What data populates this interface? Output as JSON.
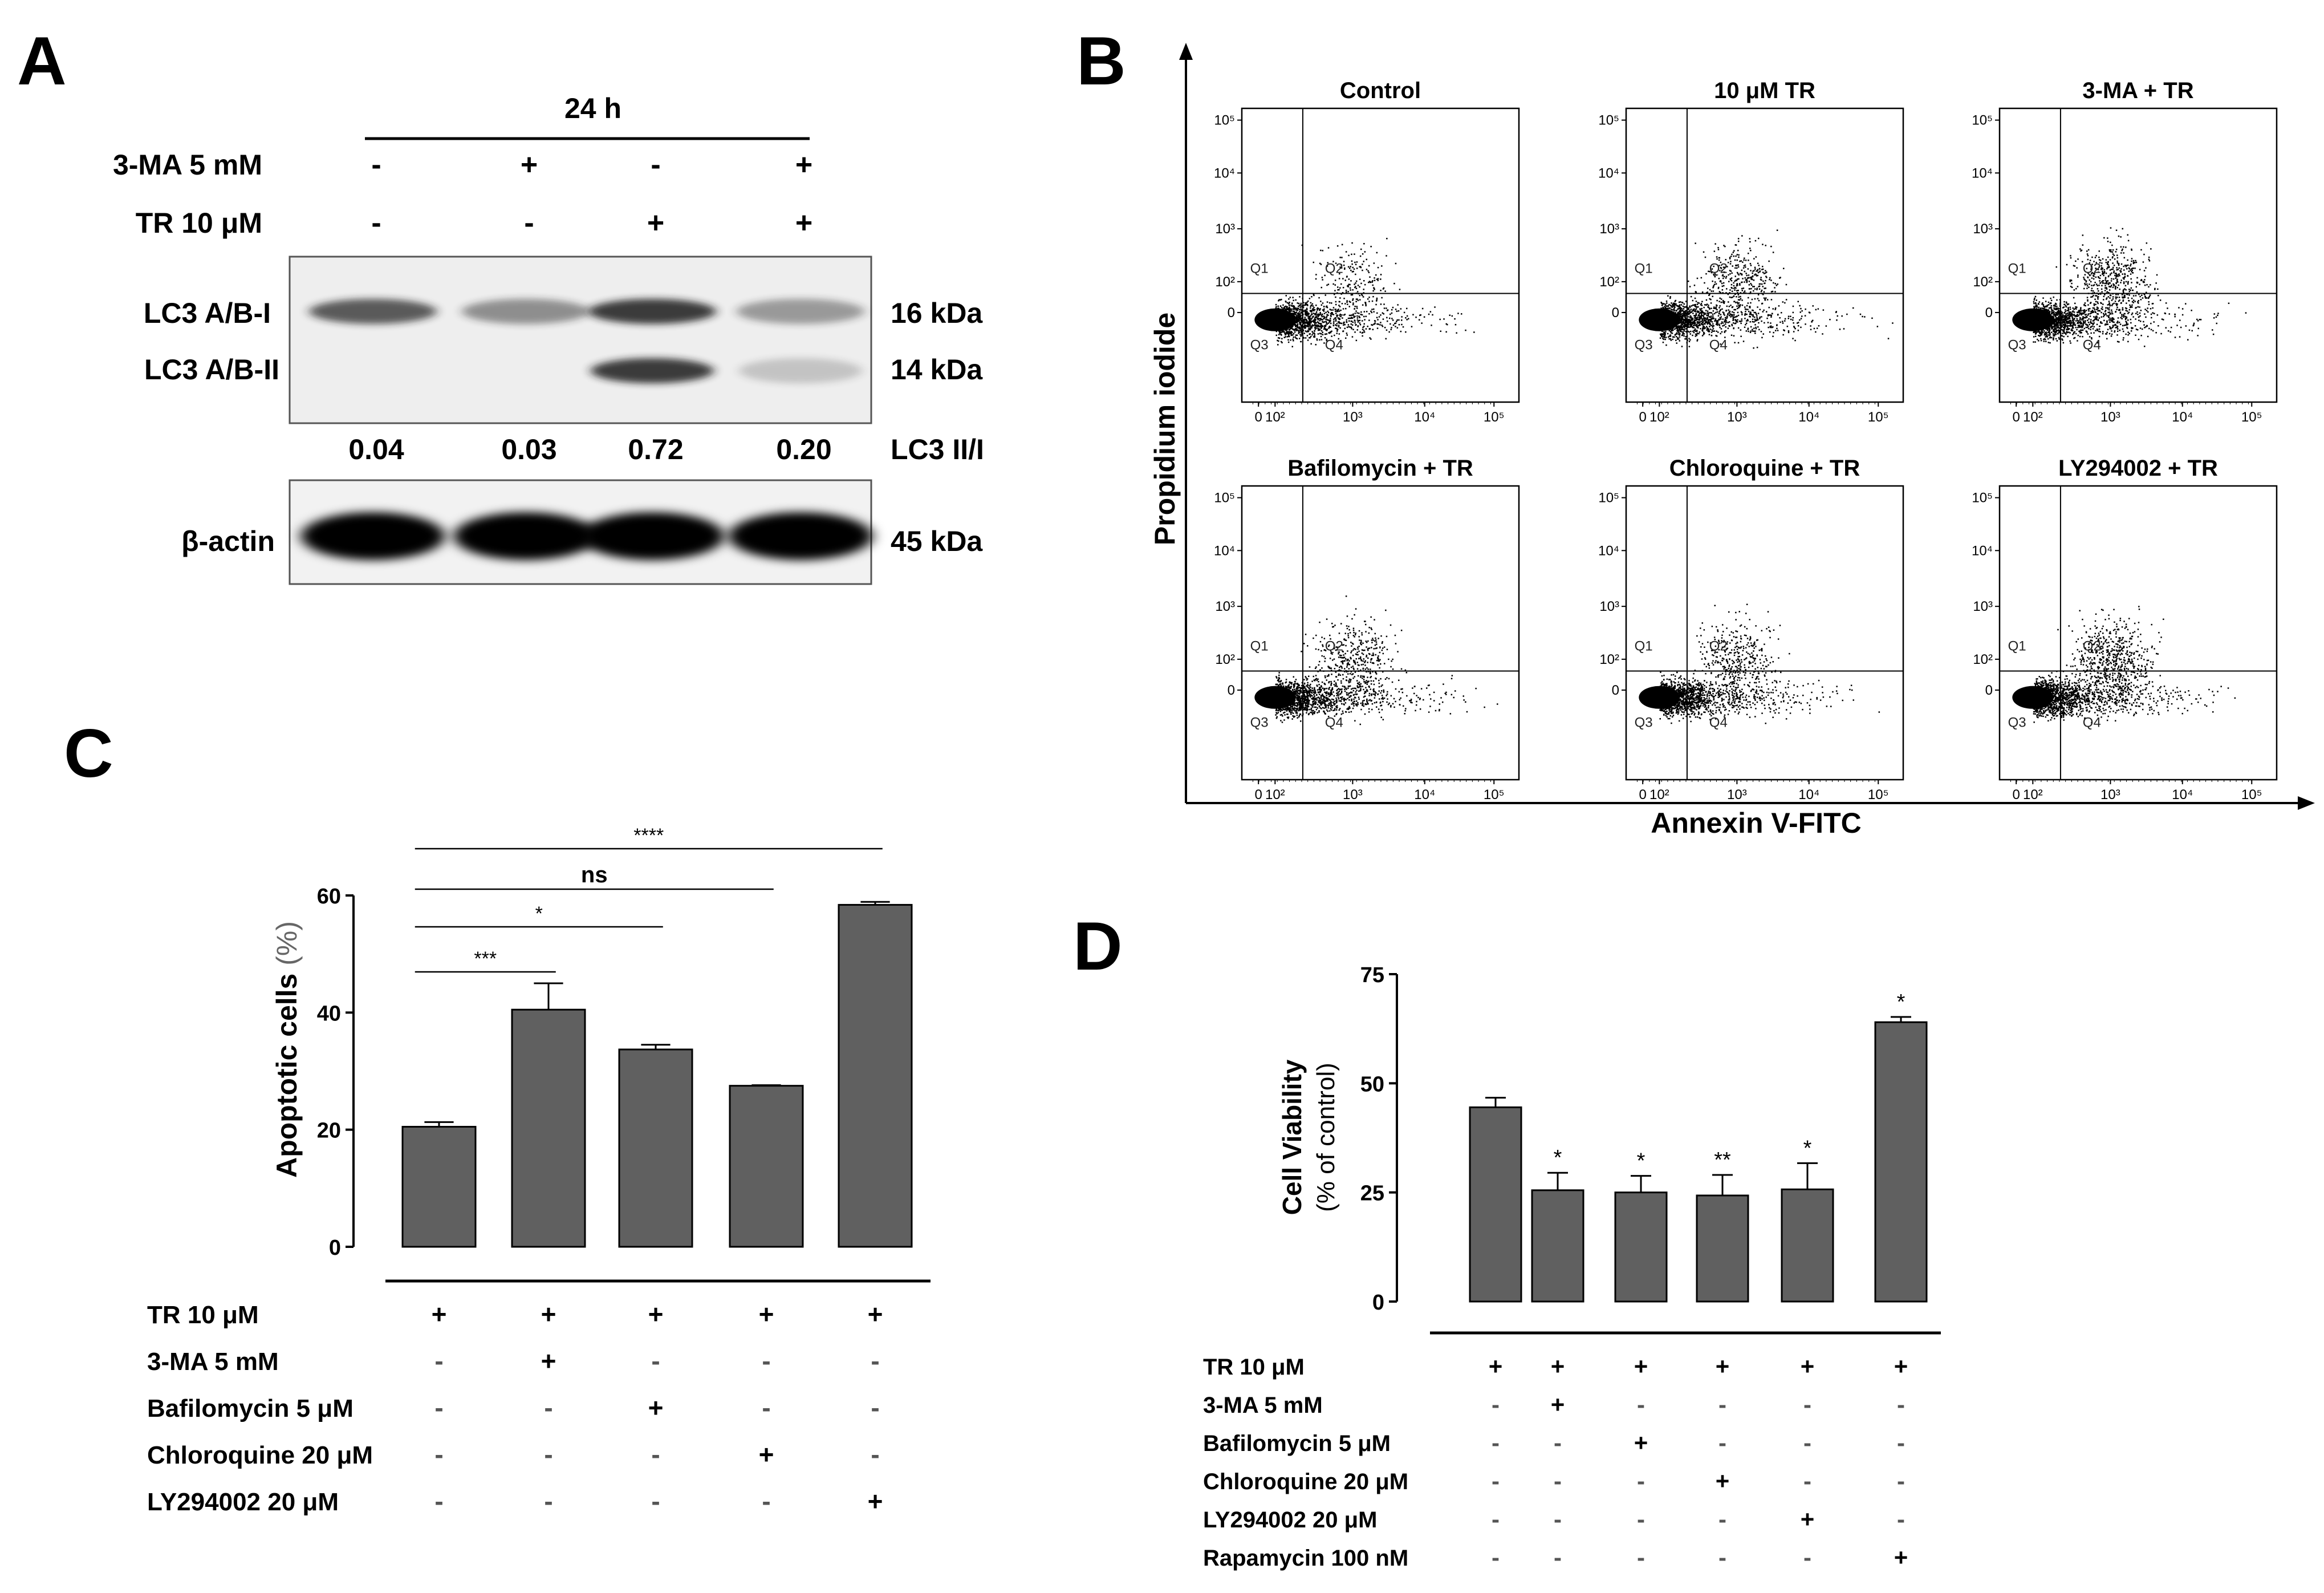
{
  "figure": {
    "panel_labels": {
      "A": "A",
      "B": "B",
      "C": "C",
      "D": "D"
    },
    "colors": {
      "bar": "#606060",
      "ink": "#000000",
      "band": "#1a1a1a",
      "blot_bg": "#efefef"
    }
  },
  "panel_a": {
    "timepoint": "24 h",
    "conditions": [
      {
        "label": "3-MA 5 mM",
        "signs": [
          "-",
          "+",
          "-",
          "+"
        ]
      },
      {
        "label": "TR 10 μM",
        "signs": [
          "-",
          "-",
          "+",
          "+"
        ]
      }
    ],
    "bands": {
      "lc3_i": {
        "label": "LC3 A/B-I",
        "size": "16 kDa",
        "intensity": [
          0.7,
          0.45,
          0.85,
          0.4
        ]
      },
      "lc3_ii": {
        "label": "LC3 A/B-II",
        "size": "14 kDa",
        "intensity": [
          0.0,
          0.0,
          0.85,
          0.2
        ]
      },
      "actin": {
        "label": "β-actin",
        "size": "45 kDa",
        "intensity": [
          1,
          1,
          1,
          1
        ]
      }
    },
    "ratio_label": "LC3 II/I",
    "ratios": [
      "0.04",
      "0.03",
      "0.72",
      "0.20"
    ]
  },
  "panel_b": {
    "y_axis_label": "Propidium iodide",
    "x_axis_label": "Annexin V-FITC",
    "y_ticks": [
      "10⁵",
      "10⁴",
      "10³",
      "10²",
      "0"
    ],
    "x_ticks": [
      "0",
      "10²",
      "10³",
      "10⁴",
      "10⁵"
    ],
    "quadrants": [
      "Q1",
      "Q2",
      "Q3",
      "Q4"
    ],
    "plots": [
      {
        "title": "Control",
        "q2_density": 0.12
      },
      {
        "title": "10 μM TR",
        "q2_density": 0.35
      },
      {
        "title": "3-MA + TR",
        "q2_density": 0.5
      },
      {
        "title": "Bafilomycin + TR",
        "q2_density": 0.4
      },
      {
        "title": "Chloroquine + TR",
        "q2_density": 0.33
      },
      {
        "title": "LY294002 + TR",
        "q2_density": 0.6
      }
    ]
  },
  "chart_data": [
    {
      "type": "bar",
      "panel": "C",
      "ylabel": "Apoptotic cells",
      "ylabel_unit": "(%)",
      "ylim": [
        0,
        60
      ],
      "yticks": [
        0,
        20,
        40,
        60
      ],
      "values": [
        20.5,
        40.5,
        33.7,
        27.5,
        58.4
      ],
      "errors": [
        0.8,
        4.5,
        0.8,
        0.1,
        0.5
      ],
      "significance": [
        {
          "label": "***",
          "from": 0,
          "to": 1
        },
        {
          "label": "*",
          "from": 0,
          "to": 2
        },
        {
          "label": "ns",
          "from": 0,
          "to": 3
        },
        {
          "label": "****",
          "from": 0,
          "to": 4
        }
      ],
      "treatment_rows": [
        {
          "label": "TR 10 μM",
          "signs": [
            "+",
            "+",
            "+",
            "+",
            "+"
          ]
        },
        {
          "label": "3-MA 5 mM",
          "signs": [
            "-",
            "+",
            "-",
            "-",
            "-"
          ]
        },
        {
          "label": "Bafilomycin 5 μM",
          "signs": [
            "-",
            "-",
            "+",
            "-",
            "-"
          ]
        },
        {
          "label": "Chloroquine 20 μM",
          "signs": [
            "-",
            "-",
            "-",
            "+",
            "-"
          ]
        },
        {
          "label": "LY294002 20 μM",
          "signs": [
            "-",
            "-",
            "-",
            "-",
            "+"
          ]
        }
      ]
    },
    {
      "type": "bar",
      "panel": "D",
      "ylabel": "Cell Viability",
      "ylabel_unit": "(% of control)",
      "ylim": [
        0,
        75
      ],
      "yticks": [
        0,
        25,
        50,
        75
      ],
      "values": [
        44.5,
        25.5,
        25,
        24.3,
        25.7,
        64
      ],
      "errors": [
        2.2,
        4,
        3.8,
        4.7,
        6,
        1.2
      ],
      "stars": [
        "",
        "*",
        "*",
        "**",
        "*",
        "*"
      ],
      "treatment_rows": [
        {
          "label": "TR 10 μM",
          "signs": [
            "+",
            "+",
            "+",
            "+",
            "+",
            "+"
          ]
        },
        {
          "label": "3-MA 5 mM",
          "signs": [
            "-",
            "+",
            "-",
            "-",
            "-",
            "-"
          ]
        },
        {
          "label": "Bafilomycin 5 μM",
          "signs": [
            "-",
            "-",
            "+",
            "-",
            "-",
            "-"
          ]
        },
        {
          "label": "Chloroquine 20 μM",
          "signs": [
            "-",
            "-",
            "-",
            "+",
            "-",
            "-"
          ]
        },
        {
          "label": "LY294002 20 μM",
          "signs": [
            "-",
            "-",
            "-",
            "-",
            "+",
            "-"
          ]
        },
        {
          "label": "Rapamycin 100 nM",
          "signs": [
            "-",
            "-",
            "-",
            "-",
            "-",
            "+"
          ]
        }
      ]
    }
  ]
}
